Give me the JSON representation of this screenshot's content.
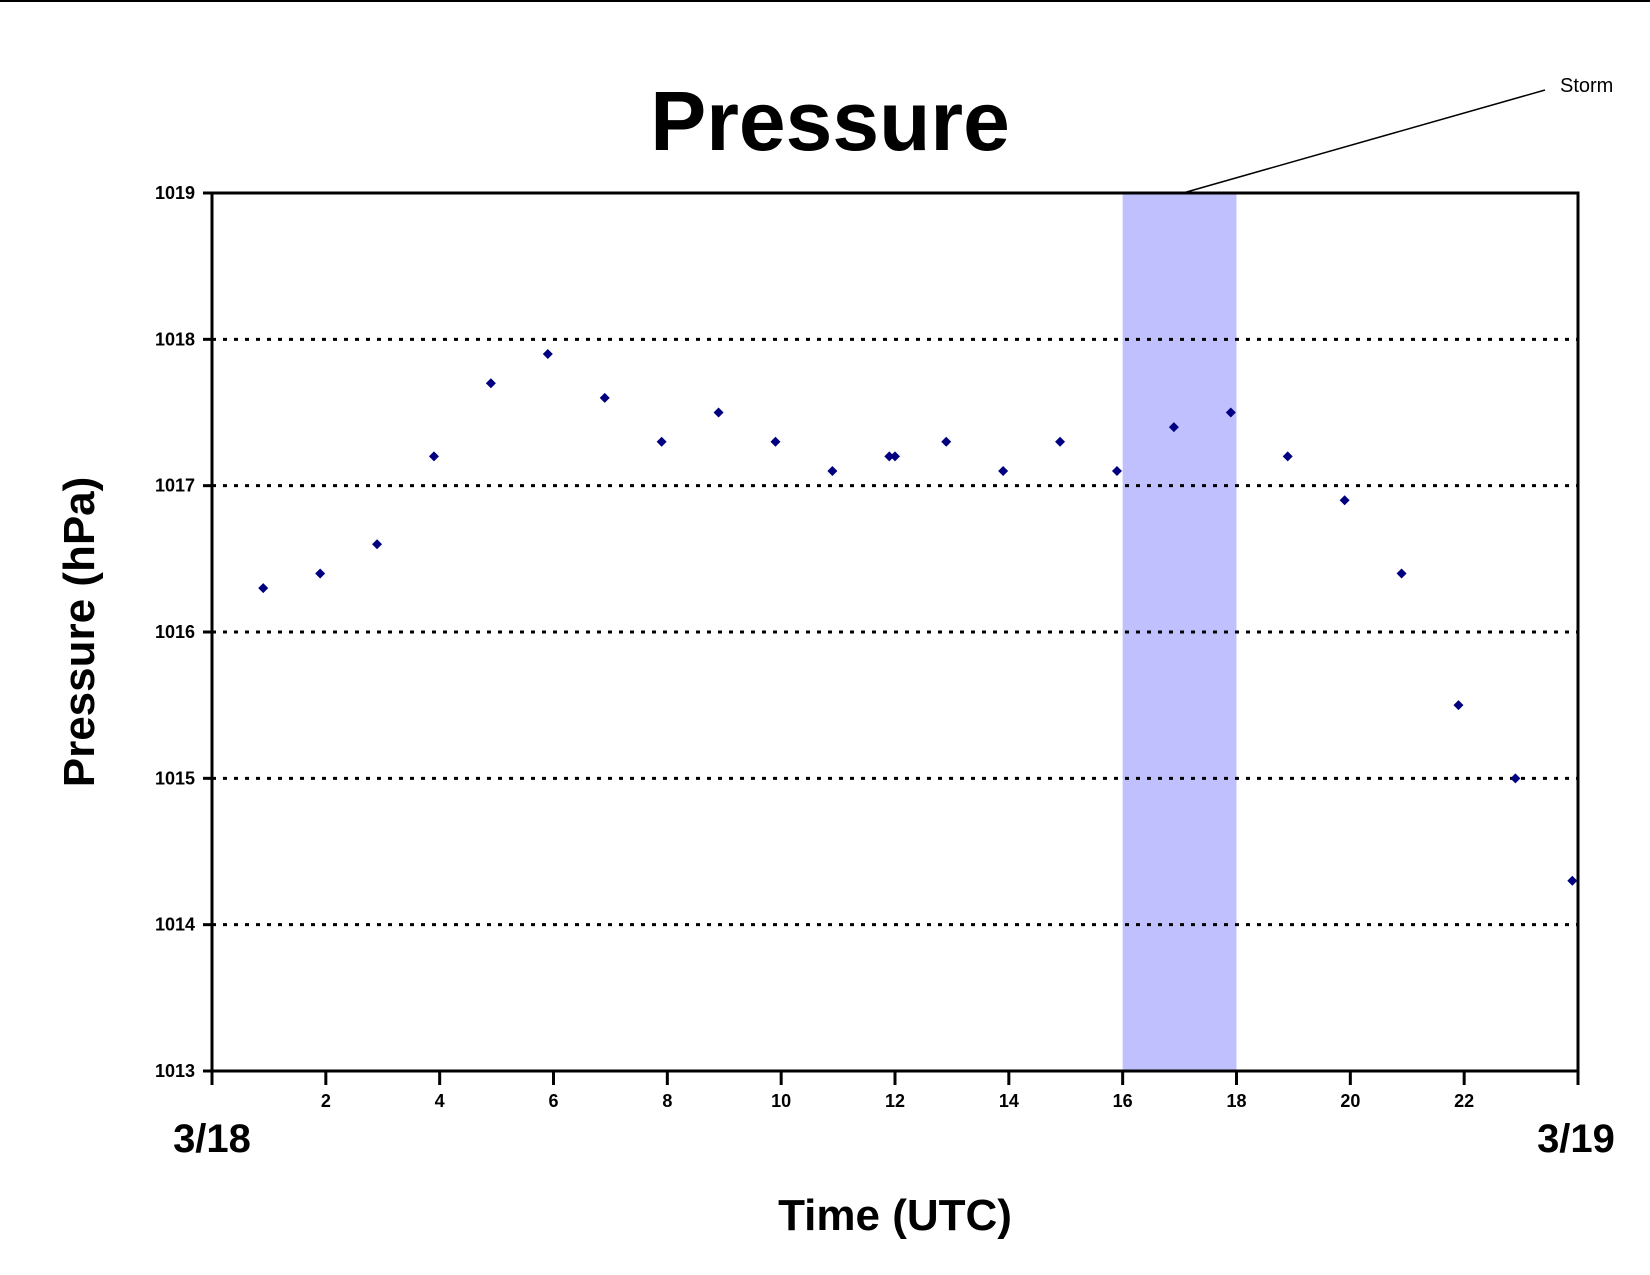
{
  "chart_data": {
    "type": "scatter",
    "title": "Pressure",
    "xlabel": "Time (UTC)",
    "ylabel": "Pressure (hPa)",
    "xlim": [
      0,
      24
    ],
    "ylim": [
      1013,
      1019
    ],
    "x_ticks": [
      2,
      4,
      6,
      8,
      10,
      12,
      14,
      16,
      18,
      20,
      22
    ],
    "y_ticks": [
      1013,
      1014,
      1015,
      1016,
      1017,
      1018,
      1019
    ],
    "grid": "horizontal dotted",
    "date_labels": {
      "start": "3/18",
      "end": "3/19"
    },
    "marker_color": "#000080",
    "series": [
      {
        "x": [
          0.9,
          1.9,
          2.9,
          3.9,
          4.9,
          5.9,
          6.9,
          7.9,
          8.9,
          9.9,
          10.9,
          11.9,
          12.0,
          12.9,
          13.9,
          14.9,
          15.9,
          16.9,
          17.9,
          18.9,
          19.9,
          20.9,
          21.9,
          22.9,
          23.9
        ],
        "y": [
          1016.3,
          1016.4,
          1016.6,
          1017.2,
          1017.7,
          1017.9,
          1017.6,
          1017.3,
          1017.5,
          1017.3,
          1017.1,
          1017.2,
          1017.2,
          1017.3,
          1017.1,
          1017.3,
          1017.1,
          1017.4,
          1017.5,
          1017.2,
          1016.9,
          1016.4,
          1015.5,
          1015.0,
          1014.3
        ]
      }
    ],
    "shaded_region": {
      "x_start": 16,
      "x_end": 18,
      "color": "#c0c0ff",
      "label": "Storm"
    }
  }
}
